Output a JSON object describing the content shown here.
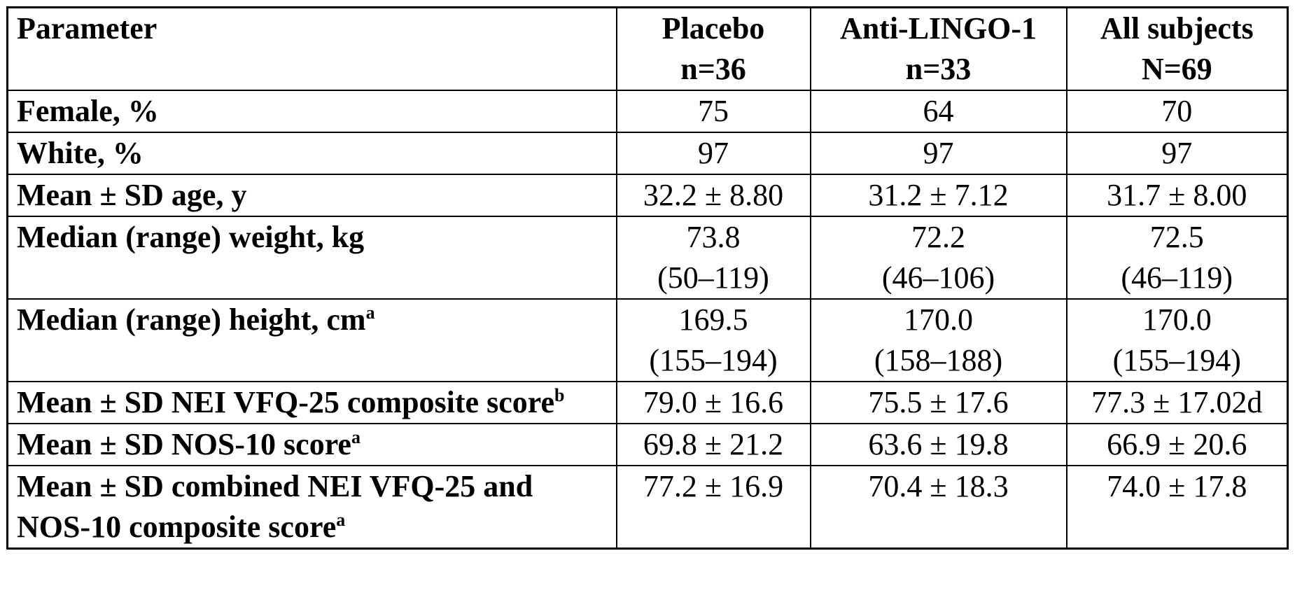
{
  "table": {
    "header": [
      [
        "Parameter"
      ],
      [
        "Placebo",
        "n=36"
      ],
      [
        "Anti-LINGO-1",
        "n=33"
      ],
      [
        "All subjects",
        "N=69"
      ]
    ],
    "rows": [
      {
        "label": "Female, %",
        "cells": [
          [
            "75"
          ],
          [
            "64"
          ],
          [
            "70"
          ]
        ]
      },
      {
        "label": "White, %",
        "cells": [
          [
            "97"
          ],
          [
            "97"
          ],
          [
            "97"
          ]
        ]
      },
      {
        "label": "Mean ± SD age, y",
        "cells": [
          [
            "32.2 ± 8.80"
          ],
          [
            "31.2 ± 7.12"
          ],
          [
            "31.7 ± 8.00"
          ]
        ]
      },
      {
        "label": "Median (range) weight, kg",
        "cells": [
          [
            "73.8",
            "(50–119)"
          ],
          [
            "72.2",
            "(46–106)"
          ],
          [
            "72.5",
            "(46–119)"
          ]
        ]
      },
      {
        "label": "Median (range) height, cm",
        "sup": "a",
        "cells": [
          [
            "169.5",
            "(155–194)"
          ],
          [
            "170.0",
            "(158–188)"
          ],
          [
            "170.0",
            "(155–194)"
          ]
        ]
      },
      {
        "label": "Mean ± SD NEI VFQ-25 composite score",
        "sup": "b",
        "cells": [
          [
            "79.0 ± 16.6"
          ],
          [
            "75.5 ± 17.6"
          ],
          [
            "77.3 ± 17.02d"
          ]
        ]
      },
      {
        "label": "Mean ± SD NOS-10 score",
        "sup": "a",
        "cells": [
          [
            "69.8 ± 21.2"
          ],
          [
            "63.6 ± 19.8"
          ],
          [
            "66.9 ± 20.6"
          ]
        ]
      },
      {
        "label": "Mean ± SD combined NEI VFQ-25 and NOS-10 composite score",
        "sup": "a",
        "cells": [
          [
            "77.2 ± 16.9"
          ],
          [
            "70.4 ± 18.3"
          ],
          [
            "74.0 ± 17.8"
          ]
        ]
      }
    ]
  }
}
